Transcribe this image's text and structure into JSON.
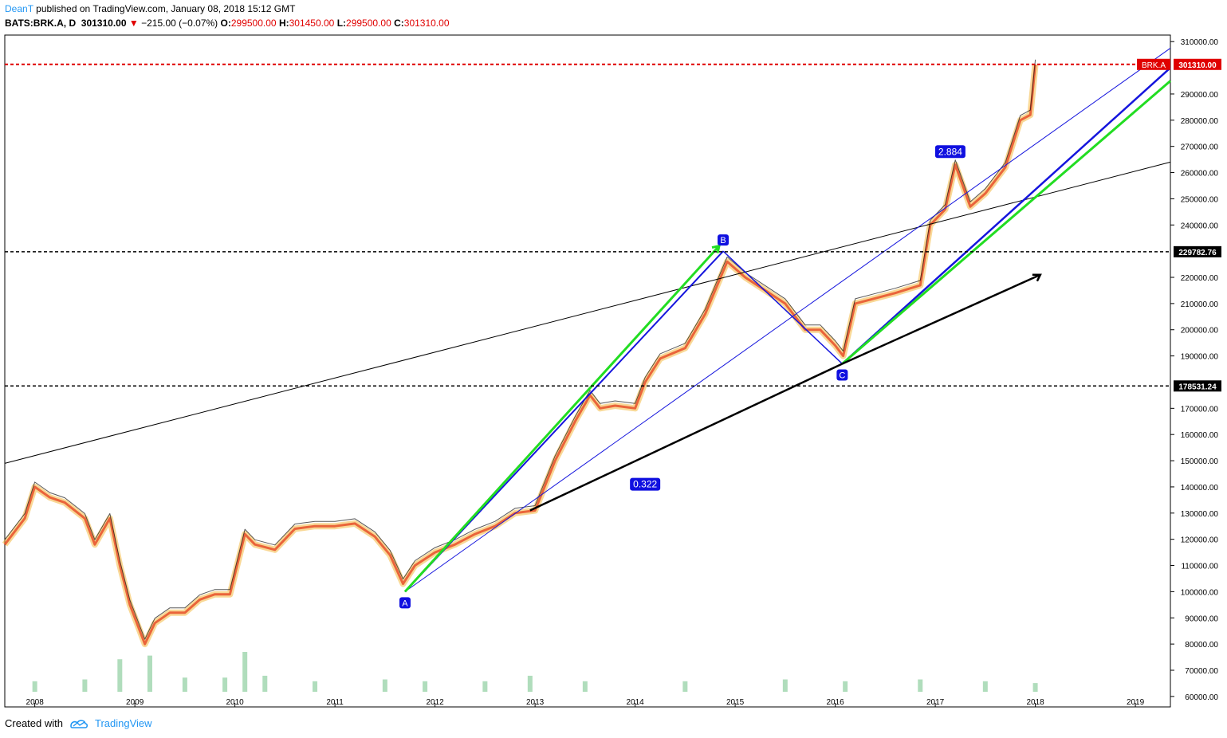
{
  "header": {
    "author": "DeanT",
    "published_text": " published on TradingView.com, January 08, 2018 15:12 GMT",
    "symbol": "BATS:BRK.A, D",
    "last": "301310.00",
    "change": "−215.00 (−0.07%)",
    "o_label": "O:",
    "o_value": "299500.00",
    "h_label": "H:",
    "h_value": "301450.00",
    "l_label": "L:",
    "l_value": "299500.00",
    "c_label": "C:",
    "c_value": "301310.00"
  },
  "footer": {
    "created_with": "Created with",
    "brand": "TradingView"
  },
  "colors": {
    "price_line": "#e00000",
    "level_line": "#000000",
    "green": "#22dd22",
    "blue": "#1515dd",
    "label_bg": "#1010e0",
    "author": "#2196f3"
  },
  "chart_data": {
    "type": "line",
    "title": "BATS:BRK.A, D",
    "xlabel": "",
    "ylabel": "",
    "x_ticks": [
      "2008",
      "2009",
      "2010",
      "2011",
      "2012",
      "2013",
      "2014",
      "2015",
      "2016",
      "2017",
      "2018",
      "2019"
    ],
    "y_ticks": [
      "310000.00",
      "290000.00",
      "280000.00",
      "270000.00",
      "260000.00",
      "250000.00",
      "240000.00",
      "220000.00",
      "210000.00",
      "200000.00",
      "190000.00",
      "170000.00",
      "160000.00",
      "150000.00",
      "140000.00",
      "130000.00",
      "120000.00",
      "110000.00",
      "100000.00",
      "90000.00",
      "80000.00",
      "70000.00",
      "60000.00"
    ],
    "ylim": [
      56000,
      312500
    ],
    "xlim": [
      2007.7,
      2019.35
    ],
    "series": [
      {
        "name": "BRK.A",
        "x": [
          2007.7,
          2007.9,
          2008.0,
          2008.15,
          2008.3,
          2008.5,
          2008.6,
          2008.75,
          2008.85,
          2008.95,
          2009.1,
          2009.2,
          2009.35,
          2009.5,
          2009.65,
          2009.8,
          2009.95,
          2010.1,
          2010.2,
          2010.4,
          2010.6,
          2010.8,
          2011.0,
          2011.2,
          2011.4,
          2011.55,
          2011.68,
          2011.8,
          2012.0,
          2012.2,
          2012.4,
          2012.6,
          2012.8,
          2013.0,
          2013.2,
          2013.4,
          2013.55,
          2013.65,
          2013.8,
          2014.0,
          2014.1,
          2014.25,
          2014.5,
          2014.7,
          2014.92,
          2015.1,
          2015.3,
          2015.5,
          2015.7,
          2015.85,
          2016.0,
          2016.08,
          2016.2,
          2016.4,
          2016.6,
          2016.85,
          2016.95,
          2017.1,
          2017.2,
          2017.35,
          2017.5,
          2017.7,
          2017.85,
          2017.95,
          2018.0
        ],
        "values": [
          118000,
          128000,
          140000,
          136000,
          134000,
          128000,
          118000,
          128000,
          110000,
          95000,
          80000,
          88000,
          92000,
          92000,
          97000,
          99000,
          99000,
          122000,
          118000,
          116000,
          124000,
          125000,
          125000,
          126000,
          121000,
          114000,
          103000,
          110000,
          115000,
          118000,
          122000,
          125000,
          130000,
          131000,
          150000,
          165000,
          175000,
          170000,
          171000,
          170000,
          180000,
          189000,
          193000,
          206000,
          226000,
          220000,
          215000,
          210000,
          200000,
          200000,
          194000,
          190000,
          210000,
          212000,
          214000,
          217000,
          240000,
          246000,
          263000,
          247000,
          252000,
          262000,
          280000,
          282000,
          301310
        ]
      }
    ],
    "horizontal_levels": [
      {
        "value": 301310.0,
        "label": "301310.00",
        "symbol_label": "BRK.A",
        "color": "red"
      },
      {
        "value": 229782.76,
        "label": "229782.76",
        "color": "black"
      },
      {
        "value": 178531.24,
        "label": "178531.24",
        "color": "black"
      }
    ],
    "points": [
      {
        "label": "A",
        "x": 2011.7,
        "y": 100000
      },
      {
        "label": "B",
        "x": 2014.88,
        "y": 230000
      },
      {
        "label": "C",
        "x": 2016.07,
        "y": 187000
      }
    ],
    "ratios": [
      {
        "label": "0.322",
        "x": 2014.1,
        "y": 141000
      },
      {
        "label": "2.884",
        "x": 2017.15,
        "y": 268000
      }
    ],
    "volume": [
      {
        "x": 2008.0,
        "v": 0.2
      },
      {
        "x": 2008.5,
        "v": 0.25
      },
      {
        "x": 2008.85,
        "v": 0.8
      },
      {
        "x": 2009.15,
        "v": 0.9
      },
      {
        "x": 2009.5,
        "v": 0.3
      },
      {
        "x": 2009.9,
        "v": 0.3
      },
      {
        "x": 2010.1,
        "v": 1.0
      },
      {
        "x": 2010.3,
        "v": 0.35
      },
      {
        "x": 2010.8,
        "v": 0.2
      },
      {
        "x": 2011.5,
        "v": 0.25
      },
      {
        "x": 2011.9,
        "v": 0.2
      },
      {
        "x": 2012.5,
        "v": 0.2
      },
      {
        "x": 2012.95,
        "v": 0.35
      },
      {
        "x": 2013.5,
        "v": 0.2
      },
      {
        "x": 2014.5,
        "v": 0.2
      },
      {
        "x": 2015.5,
        "v": 0.25
      },
      {
        "x": 2016.1,
        "v": 0.2
      },
      {
        "x": 2016.85,
        "v": 0.25
      },
      {
        "x": 2017.5,
        "v": 0.2
      },
      {
        "x": 2018.0,
        "v": 0.15
      }
    ]
  }
}
